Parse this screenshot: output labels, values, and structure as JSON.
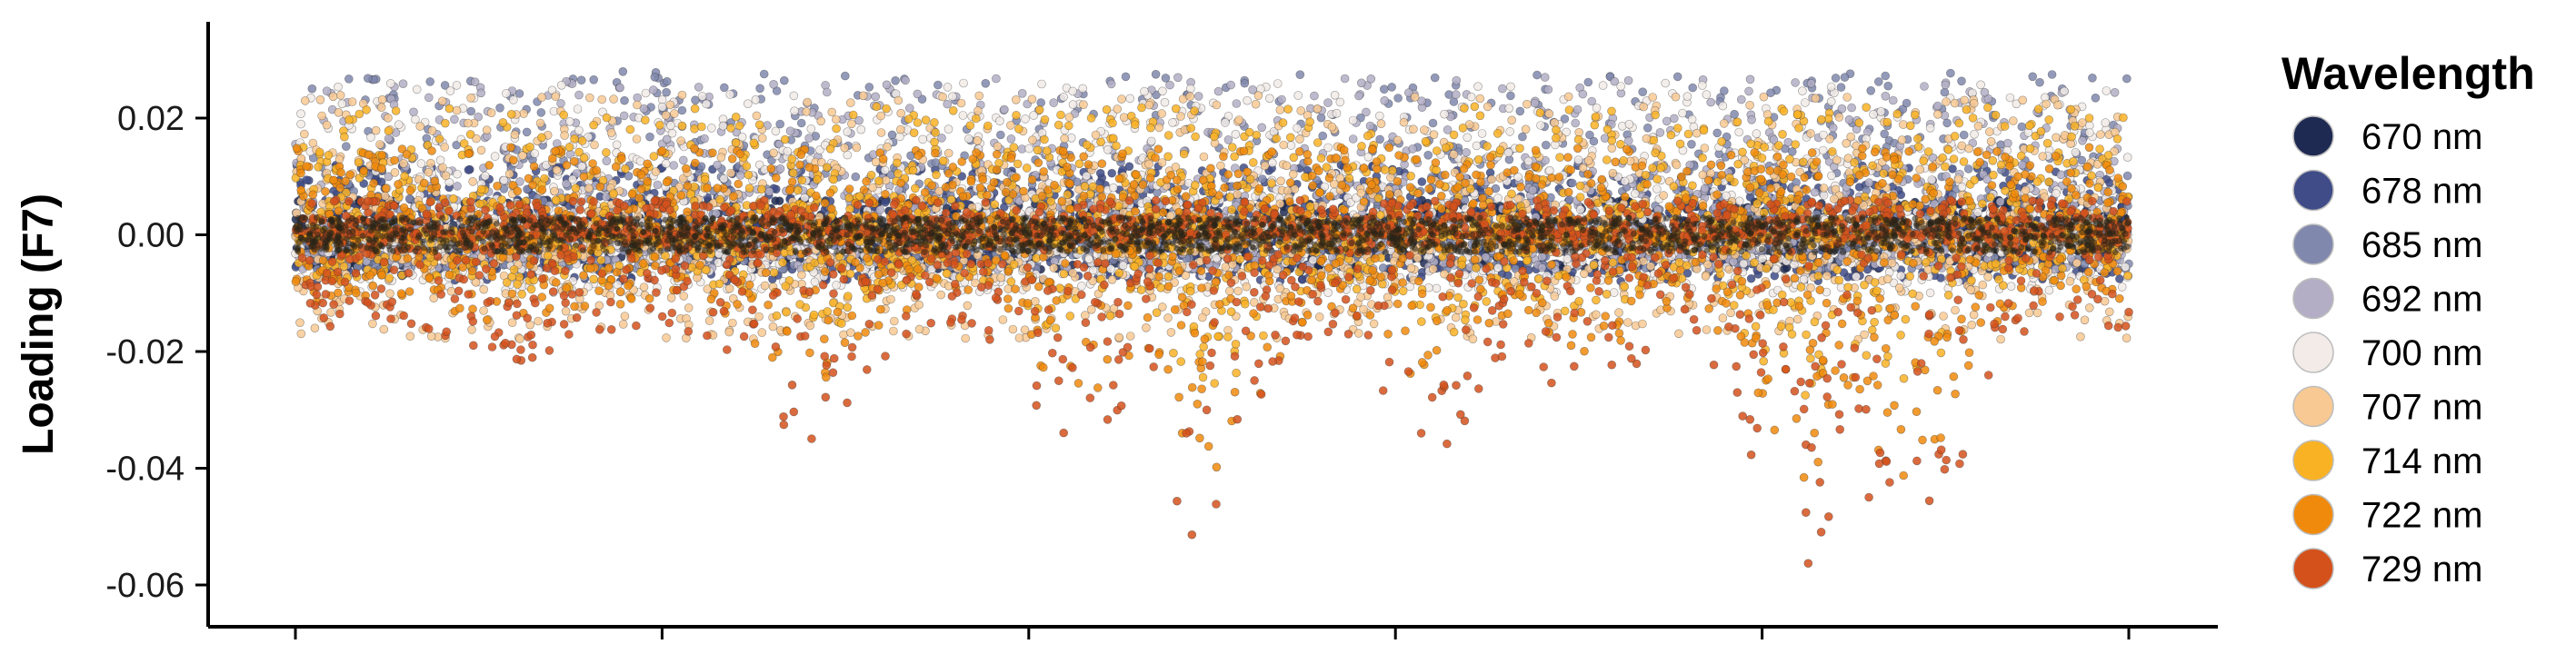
{
  "chart_data": {
    "type": "scatter",
    "title": "",
    "xlabel": "",
    "ylabel": "Loading (F7)",
    "ylim": [
      -0.066,
      0.038
    ],
    "yticks": [
      {
        "value": 0.02,
        "label": "0.02"
      },
      {
        "value": 0.0,
        "label": "0.00"
      },
      {
        "value": -0.02,
        "label": "-0.02"
      },
      {
        "value": -0.04,
        "label": "-0.04"
      },
      {
        "value": -0.06,
        "label": "-0.06"
      }
    ],
    "x_tick_count": 6,
    "x_tick_labels": [
      "",
      "",
      "",
      "",
      "",
      ""
    ],
    "grid": false,
    "legend": {
      "title": "Wavelength",
      "placement": "right"
    },
    "series": [
      {
        "name": "670 nm",
        "color": "#1f2a52",
        "ymin": -0.006,
        "ymax": 0.006
      },
      {
        "name": "678 nm",
        "color": "#3f4c87",
        "ymin": -0.008,
        "ymax": 0.012
      },
      {
        "name": "685 nm",
        "color": "#8088ad",
        "ymin": -0.006,
        "ymax": 0.028
      },
      {
        "name": "692 nm",
        "color": "#b3aec5",
        "ymin": -0.006,
        "ymax": 0.027
      },
      {
        "name": "700 nm",
        "color": "#f2ebe8",
        "ymin": -0.01,
        "ymax": 0.026
      },
      {
        "name": "707 nm",
        "color": "#f8c993",
        "ymin": -0.018,
        "ymax": 0.024
      },
      {
        "name": "714 nm",
        "color": "#f9b224",
        "ymin": -0.03,
        "ymax": 0.022
      },
      {
        "name": "722 nm",
        "color": "#f08a0c",
        "ymin": -0.045,
        "ymax": 0.015
      },
      {
        "name": "729 nm",
        "color": "#d4511c",
        "ymin": -0.062,
        "ymax": 0.006
      }
    ],
    "envelope_troughs": [
      {
        "x": 0.12,
        "depth": -0.022
      },
      {
        "x": 0.28,
        "depth": -0.036
      },
      {
        "x": 0.43,
        "depth": -0.04
      },
      {
        "x": 0.5,
        "depth": -0.056
      },
      {
        "x": 0.62,
        "depth": -0.038
      },
      {
        "x": 0.7,
        "depth": -0.03
      },
      {
        "x": 0.82,
        "depth": -0.058
      },
      {
        "x": 0.88,
        "depth": -0.062
      }
    ]
  }
}
